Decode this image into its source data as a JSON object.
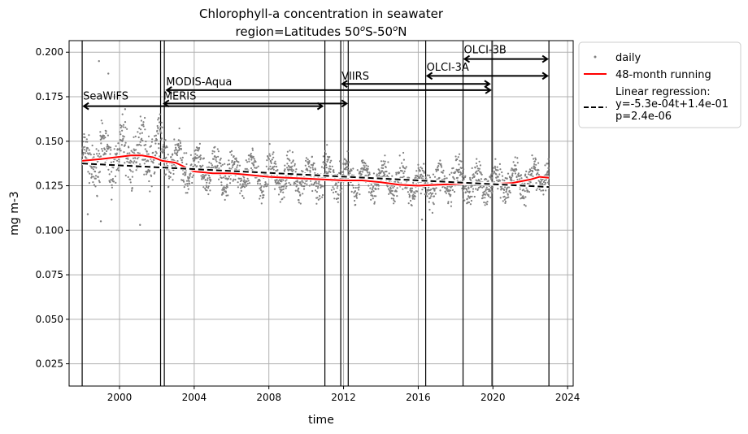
{
  "chart_data": {
    "type": "scatter",
    "title_line1": "Chlorophyll-a concentration in seawater",
    "title_line2_prefix": "region=Latitudes 50",
    "title_line2_mid": "S-50",
    "title_line2_suffix": "N",
    "title_sup": "o",
    "xlabel": "time",
    "ylabel": "mg m-3",
    "xlim": [
      1997.3,
      2024.3
    ],
    "ylim": [
      0.0125,
      0.2065
    ],
    "xticks": [
      2000,
      2004,
      2008,
      2012,
      2016,
      2020,
      2024
    ],
    "yticks": [
      0.025,
      0.05,
      0.075,
      0.1,
      0.125,
      0.15,
      0.175,
      0.2
    ],
    "ytick_labels": [
      "0.025",
      "0.050",
      "0.075",
      "0.100",
      "0.125",
      "0.150",
      "0.175",
      "0.200"
    ],
    "grid": true,
    "legend_position": "outside-right",
    "series": [
      {
        "name": "daily",
        "kind": "points",
        "color": "#808080",
        "envelope_x": [
          1998.0,
          1999.0,
          2000.0,
          2001.0,
          2002.0,
          2003.0,
          2004.0,
          2006.0,
          2008.0,
          2010.0,
          2012.0,
          2014.0,
          2016.0,
          2018.0,
          2020.0,
          2022.0,
          2023.0
        ],
        "envelope_mean": [
          0.138,
          0.14,
          0.142,
          0.144,
          0.145,
          0.139,
          0.134,
          0.132,
          0.131,
          0.13,
          0.13,
          0.128,
          0.126,
          0.127,
          0.126,
          0.129,
          0.131
        ],
        "envelope_amplitude": [
          0.012,
          0.015,
          0.016,
          0.016,
          0.016,
          0.013,
          0.011,
          0.011,
          0.011,
          0.011,
          0.011,
          0.01,
          0.01,
          0.011,
          0.01,
          0.01,
          0.01
        ],
        "outliers": [
          [
            1998.9,
            0.195
          ],
          [
            1999.4,
            0.188
          ],
          [
            2000.3,
            0.168
          ],
          [
            2001.1,
            0.103
          ],
          [
            1998.3,
            0.109
          ],
          [
            1999.0,
            0.105
          ],
          [
            2002.1,
            0.163
          ],
          [
            2016.2,
            0.106
          ]
        ]
      },
      {
        "name": "48-month running",
        "kind": "line",
        "color": "#ff0000",
        "x": [
          1998.0,
          1999.0,
          1999.8,
          2000.6,
          2001.2,
          2001.8,
          2002.3,
          2003.0,
          2004.0,
          2005.0,
          2006.0,
          2007.0,
          2008.0,
          2009.0,
          2010.0,
          2011.0,
          2012.0,
          2013.0,
          2014.0,
          2015.0,
          2016.0,
          2017.0,
          2018.0,
          2019.0,
          2020.0,
          2021.0,
          2022.0,
          2022.5,
          2023.0
        ],
        "y": [
          0.139,
          0.14,
          0.141,
          0.142,
          0.142,
          0.141,
          0.139,
          0.138,
          0.133,
          0.132,
          0.132,
          0.131,
          0.13,
          0.1295,
          0.129,
          0.1285,
          0.128,
          0.128,
          0.127,
          0.1255,
          0.125,
          0.1255,
          0.126,
          0.1265,
          0.126,
          0.1265,
          0.1285,
          0.13,
          0.1295
        ]
      },
      {
        "name": "Linear regression:\ny=-5.3e-04t+1.4e-01\np=2.4e-06",
        "kind": "dashed-line",
        "color": "#000000",
        "x": [
          1998.0,
          2023.0
        ],
        "y": [
          0.1375,
          0.1243
        ]
      }
    ],
    "missions": [
      {
        "name": "SeaWiFS",
        "start": 1998.0,
        "end": 2010.95,
        "label_y": 0.1735,
        "arrow_y": 0.1697
      },
      {
        "name": "MODIS-Aqua",
        "start": 2002.45,
        "end": 2019.95,
        "label_y": 0.1815,
        "arrow_y": 0.1787
      },
      {
        "name": "MERIS",
        "start": 2002.3,
        "end": 2012.25,
        "label_y": 0.1735,
        "arrow_y": 0.1712
      },
      {
        "name": "VIIRS",
        "start": 2011.85,
        "end": 2019.9,
        "label_y": 0.1845,
        "arrow_y": 0.1822
      },
      {
        "name": "OLCI-3A",
        "start": 2016.4,
        "end": 2023.0,
        "label_y": 0.1895,
        "arrow_y": 0.1867
      },
      {
        "name": "OLCI-3B",
        "start": 2018.4,
        "end": 2023.0,
        "label_y": 0.1995,
        "arrow_y": 0.1962
      }
    ],
    "vertical_lines": [
      1998.0,
      2002.2,
      2002.4,
      2011.0,
      2011.85,
      2012.25,
      2016.4,
      2018.4,
      2019.95,
      2023.0
    ]
  }
}
